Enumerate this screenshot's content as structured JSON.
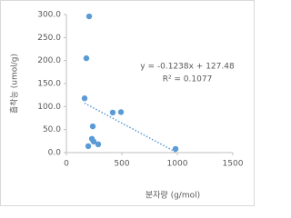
{
  "chart_data": {
    "type": "scatter",
    "x_label": "분자량 (g/mol)",
    "y_label": "흡착능 (umol/g)",
    "series": [
      {
        "color": "#5b9bd5",
        "x": [
          205,
          180,
          164,
          238,
          230,
          246,
          197,
          287,
          418,
          492,
          984
        ],
        "values": [
          296,
          205,
          118,
          57,
          30,
          24,
          14,
          18,
          87,
          88,
          8
        ]
      }
    ],
    "trendline": {
      "style": "dotted",
      "equation": "y = -0.1238x + 127.48",
      "r_squared": "R² = 0.1077"
    },
    "xlim": [
      0,
      1500
    ],
    "xticks": [
      0,
      500,
      1000,
      1500
    ],
    "ylim": [
      0,
      300
    ],
    "yticks": [
      {
        "value": 0,
        "label": "0.0"
      },
      {
        "value": 50,
        "label": "50.0"
      },
      {
        "value": 100,
        "label": "100.0"
      },
      {
        "value": 150,
        "label": "150.0"
      },
      {
        "value": 200,
        "label": "200.0"
      },
      {
        "value": 250,
        "label": "250.0"
      },
      {
        "value": 300,
        "label": "300.0"
      }
    ],
    "grid": false
  }
}
